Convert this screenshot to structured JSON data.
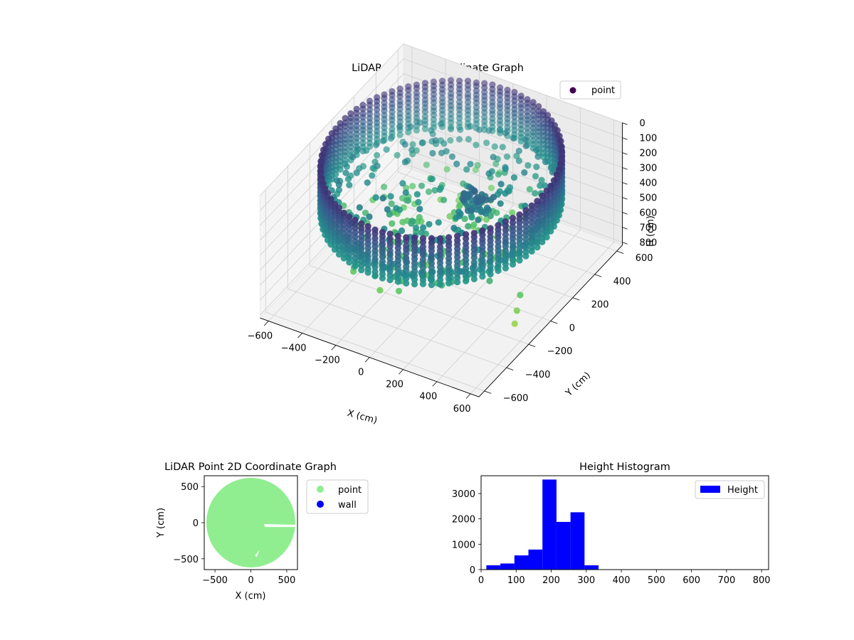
{
  "chart_data": [
    {
      "type": "scatter",
      "projection": "3d",
      "title": "LiDAR Point 3D Coordinate Graph",
      "xlabel": "X (cm)",
      "ylabel": "Y (cm)",
      "zlabel": "H (cm)",
      "xlim": [
        -650,
        650
      ],
      "ylim": [
        -650,
        650
      ],
      "zlim": [
        0,
        820
      ],
      "z_inverted": true,
      "xticks": [
        "−600",
        "−400",
        "−200",
        "0",
        "200",
        "400",
        "600"
      ],
      "yticks": [
        "−600",
        "−400",
        "−200",
        "0",
        "200",
        "400",
        "600"
      ],
      "zticks": [
        "0",
        "100",
        "200",
        "300",
        "400",
        "500",
        "600",
        "700",
        "800"
      ],
      "grid": true,
      "colormap": "viridis",
      "legend": {
        "position": "upper-right",
        "entries": [
          {
            "name": "point",
            "color": "#440154"
          }
        ]
      },
      "structure": {
        "description_rings": [
          {
            "radius": 560,
            "h_range": [
              240,
              290
            ]
          },
          {
            "radius": 520,
            "h_range": [
              300,
              350
            ]
          }
        ],
        "outer_wall_radius": 600,
        "outer_wall_h_range": [
          0,
          330
        ],
        "center_object": {
          "x": 200,
          "y": 0,
          "h_range": [
            150,
            260
          ]
        },
        "outlier_points": [
          {
            "x": 600,
            "y": -200,
            "h": 510
          },
          {
            "x": 620,
            "y": -260,
            "h": 560
          },
          {
            "x": 640,
            "y": -310,
            "h": 600
          }
        ]
      }
    },
    {
      "type": "scatter",
      "title": "LiDAR Point 2D Coordinate Graph",
      "xlabel": "X (cm)",
      "ylabel": "Y (cm)",
      "xlim": [
        -650,
        650
      ],
      "ylim": [
        -650,
        650
      ],
      "xticks": [
        "−500",
        "0",
        "500"
      ],
      "yticks": [
        "−500",
        "0",
        "500"
      ],
      "legend": {
        "position": "outside-right",
        "entries": [
          {
            "name": "point",
            "color": "#90ee90"
          },
          {
            "name": "wall",
            "color": "#0000ff"
          }
        ]
      },
      "series": [
        {
          "name": "point",
          "color": "#90ee90",
          "shape": "filled-disc",
          "center": [
            0,
            0
          ],
          "radius": 620
        },
        {
          "name": "wall",
          "color": "#0000ff",
          "count": 0
        }
      ]
    },
    {
      "type": "bar",
      "subtype": "histogram",
      "title": "Height Histogram",
      "xlim": [
        0,
        820
      ],
      "ylim": [
        0,
        3700
      ],
      "xticks": [
        "0",
        "100",
        "200",
        "300",
        "400",
        "500",
        "600",
        "700",
        "800"
      ],
      "yticks": [
        "0",
        "1000",
        "2000",
        "3000"
      ],
      "legend": {
        "position": "upper-right",
        "entries": [
          {
            "name": "Height",
            "color": "#0000ff"
          }
        ]
      },
      "bin_edges": [
        15,
        55,
        95,
        135,
        175,
        215,
        255,
        295,
        335
      ],
      "values": [
        170,
        240,
        560,
        790,
        3550,
        1880,
        2260,
        170
      ]
    }
  ]
}
